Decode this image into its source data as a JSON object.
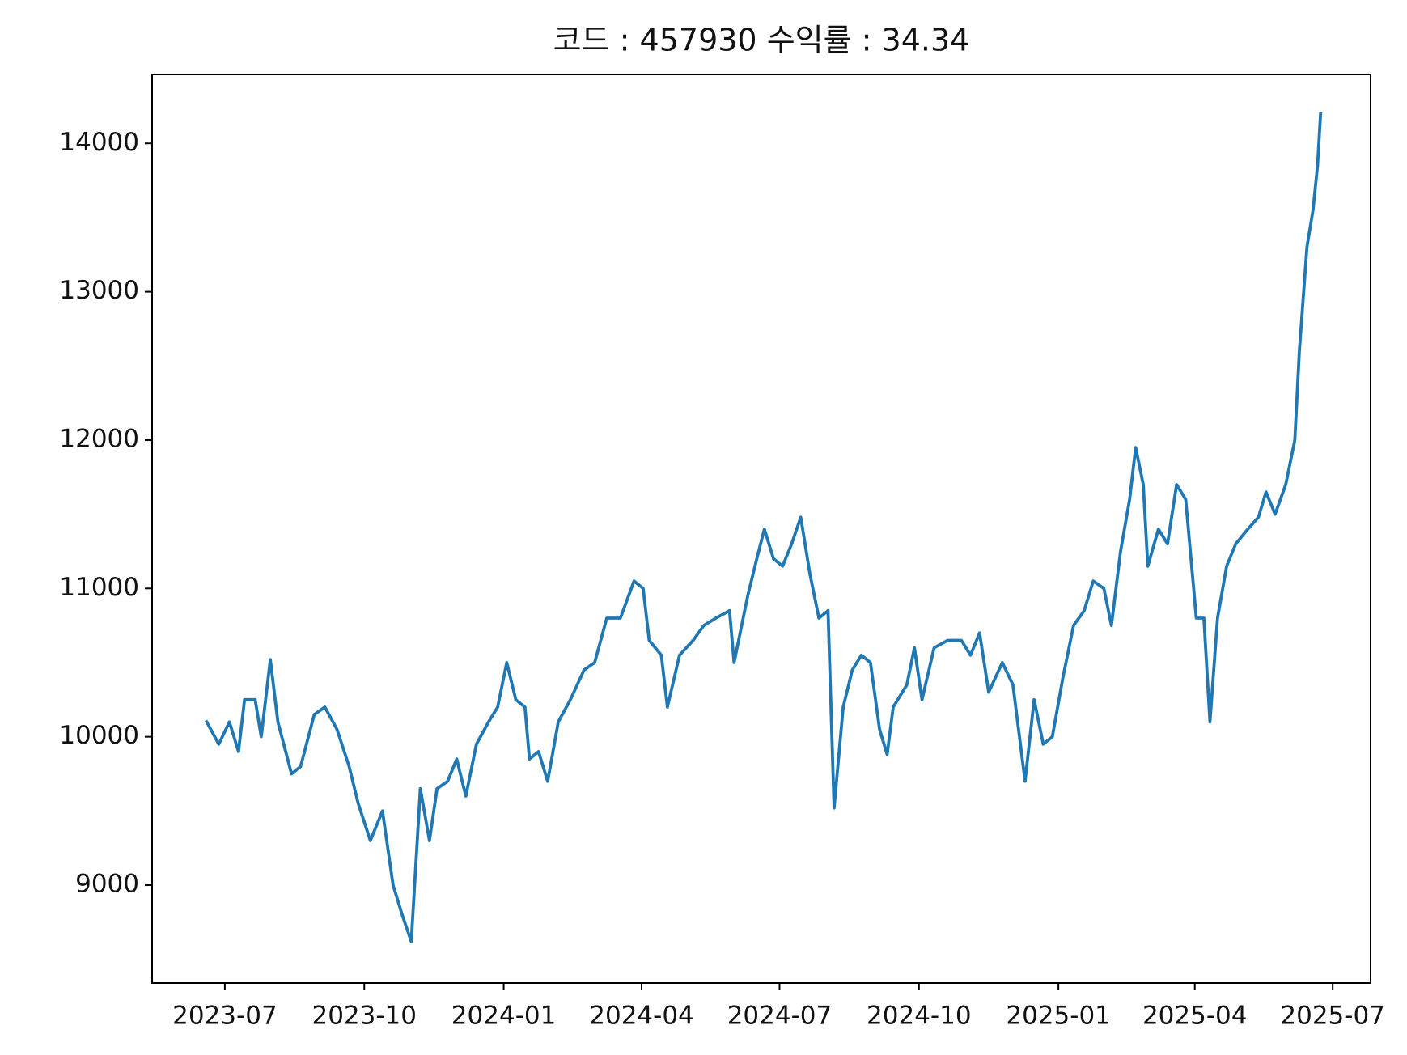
{
  "chart_data": {
    "type": "line",
    "title": "코드 : 457930 수익률 : 34.34",
    "color": "#1f77b4",
    "x": [
      "2023-06-19",
      "2023-06-27",
      "2023-07-04",
      "2023-07-10",
      "2023-07-14",
      "2023-07-21",
      "2023-07-25",
      "2023-07-31",
      "2023-08-05",
      "2023-08-14",
      "2023-08-20",
      "2023-08-29",
      "2023-09-05",
      "2023-09-13",
      "2023-09-21",
      "2023-09-27",
      "2023-10-05",
      "2023-10-13",
      "2023-10-20",
      "2023-10-26",
      "2023-11-01",
      "2023-11-07",
      "2023-11-13",
      "2023-11-18",
      "2023-11-25",
      "2023-12-01",
      "2023-12-07",
      "2023-12-14",
      "2023-12-22",
      "2023-12-28",
      "2024-01-03",
      "2024-01-09",
      "2024-01-15",
      "2024-01-18",
      "2024-01-24",
      "2024-01-30",
      "2024-02-06",
      "2024-02-14",
      "2024-02-23",
      "2024-03-01",
      "2024-03-09",
      "2024-03-18",
      "2024-03-27",
      "2024-04-02",
      "2024-04-06",
      "2024-04-14",
      "2024-04-18",
      "2024-04-26",
      "2024-05-05",
      "2024-05-12",
      "2024-05-20",
      "2024-05-29",
      "2024-06-01",
      "2024-06-10",
      "2024-06-16",
      "2024-06-21",
      "2024-06-27",
      "2024-07-03",
      "2024-07-09",
      "2024-07-15",
      "2024-07-21",
      "2024-07-27",
      "2024-08-02",
      "2024-08-06",
      "2024-08-12",
      "2024-08-18",
      "2024-08-24",
      "2024-08-30",
      "2024-09-05",
      "2024-09-10",
      "2024-09-14",
      "2024-09-23",
      "2024-09-28",
      "2024-10-03",
      "2024-10-11",
      "2024-10-20",
      "2024-10-29",
      "2024-11-04",
      "2024-11-10",
      "2024-11-16",
      "2024-11-25",
      "2024-12-02",
      "2024-12-10",
      "2024-12-16",
      "2024-12-22",
      "2024-12-28",
      "2025-01-04",
      "2025-01-11",
      "2025-01-18",
      "2025-01-24",
      "2025-01-31",
      "2025-02-05",
      "2025-02-11",
      "2025-02-17",
      "2025-02-21",
      "2025-02-26",
      "2025-03-01",
      "2025-03-08",
      "2025-03-14",
      "2025-03-20",
      "2025-03-26",
      "2025-04-02",
      "2025-04-07",
      "2025-04-11",
      "2025-04-16",
      "2025-04-22",
      "2025-04-28",
      "2025-05-06",
      "2025-05-13",
      "2025-05-18",
      "2025-05-24",
      "2025-05-31",
      "2025-06-06",
      "2025-06-09",
      "2025-06-14",
      "2025-06-18",
      "2025-06-21",
      "2025-06-23"
    ],
    "values": [
      10100,
      9950,
      10100,
      9900,
      10250,
      10250,
      10000,
      10520,
      10100,
      9750,
      9800,
      10150,
      10200,
      10050,
      9800,
      9550,
      9300,
      9500,
      9000,
      8800,
      8620,
      9650,
      9300,
      9650,
      9700,
      9850,
      9600,
      9950,
      10100,
      10200,
      10500,
      10250,
      10200,
      9850,
      9900,
      9700,
      10100,
      10250,
      10450,
      10500,
      10800,
      10800,
      11050,
      11000,
      10650,
      10550,
      10200,
      10550,
      10650,
      10750,
      10800,
      10850,
      10500,
      10950,
      11200,
      11400,
      11200,
      11150,
      11300,
      11480,
      11100,
      10800,
      10850,
      9520,
      10200,
      10450,
      10550,
      10500,
      10050,
      9880,
      10200,
      10350,
      10600,
      10250,
      10600,
      10650,
      10650,
      10550,
      10700,
      10300,
      10500,
      10350,
      9700,
      10250,
      9950,
      10000,
      10400,
      10750,
      10850,
      11050,
      11000,
      10750,
      11250,
      11600,
      11950,
      11700,
      11150,
      11400,
      11300,
      11700,
      11600,
      10800,
      10800,
      10100,
      10800,
      11150,
      11300,
      11400,
      11480,
      11650,
      11500,
      11700,
      12000,
      12600,
      13300,
      13550,
      13850,
      14200
    ],
    "xlim": [
      "2023-05-14",
      "2025-07-26"
    ],
    "xticks": [
      {
        "value": "2023-07-01",
        "label": "2023-07"
      },
      {
        "value": "2023-10-01",
        "label": "2023-10"
      },
      {
        "value": "2024-01-01",
        "label": "2024-01"
      },
      {
        "value": "2024-04-01",
        "label": "2024-04"
      },
      {
        "value": "2024-07-01",
        "label": "2024-07"
      },
      {
        "value": "2024-10-01",
        "label": "2024-10"
      },
      {
        "value": "2025-01-01",
        "label": "2025-01"
      },
      {
        "value": "2025-04-01",
        "label": "2025-04"
      },
      {
        "value": "2025-07-01",
        "label": "2025-07"
      }
    ],
    "ylim": [
      8340,
      14465
    ],
    "yticks": [
      9000,
      10000,
      11000,
      12000,
      13000,
      14000
    ]
  }
}
